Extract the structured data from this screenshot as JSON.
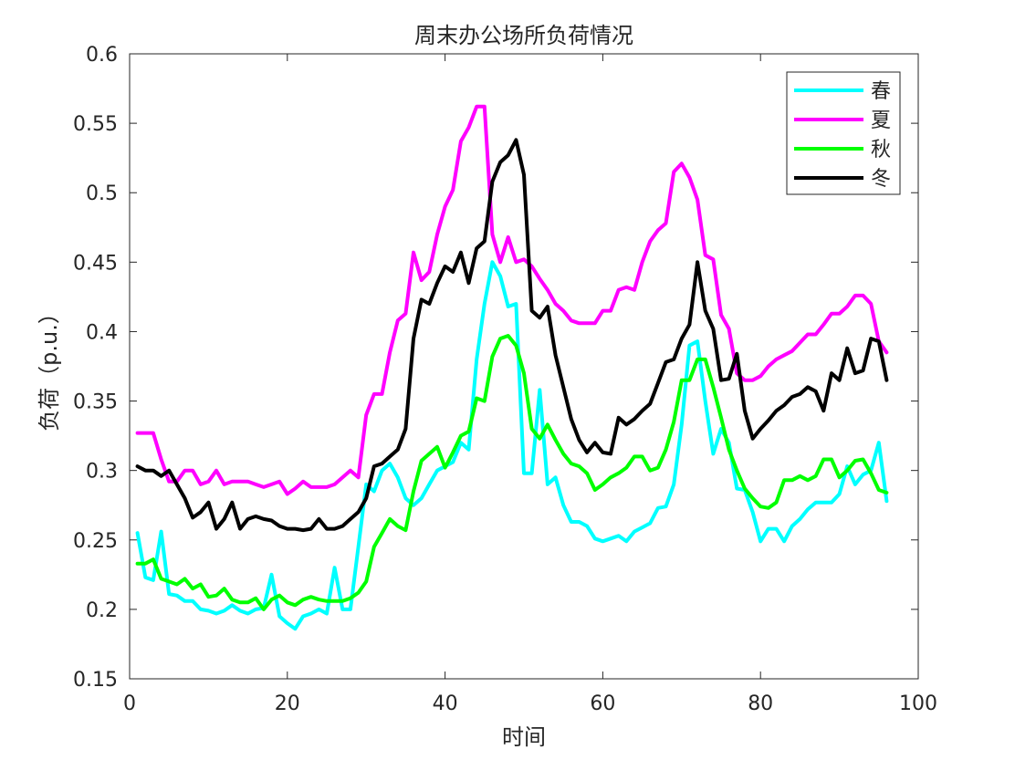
{
  "chart_data": {
    "type": "line",
    "title": "周末办公场所负荷情况",
    "xlabel": "时间",
    "ylabel": "负荷（p.u.）",
    "xlim": [
      0,
      100
    ],
    "ylim": [
      0.15,
      0.6
    ],
    "xticks": [
      0,
      20,
      40,
      60,
      80,
      100
    ],
    "yticks": [
      0.15,
      0.2,
      0.25,
      0.3,
      0.35,
      0.4,
      0.45,
      0.5,
      0.55,
      0.6
    ],
    "ytick_labels": [
      "0.15",
      "0.2",
      "0.25",
      "0.3",
      "0.35",
      "0.4",
      "0.45",
      "0.5",
      "0.55",
      "0.6"
    ],
    "grid": false,
    "legend_position": "top-right",
    "x": [
      1,
      2,
      3,
      4,
      5,
      6,
      7,
      8,
      9,
      10,
      11,
      12,
      13,
      14,
      15,
      16,
      17,
      18,
      19,
      20,
      21,
      22,
      23,
      24,
      25,
      26,
      27,
      28,
      29,
      30,
      31,
      32,
      33,
      34,
      35,
      36,
      37,
      38,
      39,
      40,
      41,
      42,
      43,
      44,
      45,
      46,
      47,
      48,
      49,
      50,
      51,
      52,
      53,
      54,
      55,
      56,
      57,
      58,
      59,
      60,
      61,
      62,
      63,
      64,
      65,
      66,
      67,
      68,
      69,
      70,
      71,
      72,
      73,
      74,
      75,
      76,
      77,
      78,
      79,
      80,
      81,
      82,
      83,
      84,
      85,
      86,
      87,
      88,
      89,
      90,
      91,
      92,
      93,
      94,
      95,
      96
    ],
    "series": [
      {
        "name": "春",
        "color": "#00ffff",
        "values": [
          0.255,
          0.223,
          0.221,
          0.256,
          0.211,
          0.21,
          0.206,
          0.206,
          0.2,
          0.199,
          0.197,
          0.199,
          0.203,
          0.199,
          0.197,
          0.2,
          0.201,
          0.225,
          0.195,
          0.19,
          0.186,
          0.195,
          0.197,
          0.2,
          0.197,
          0.23,
          0.2,
          0.2,
          0.245,
          0.29,
          0.285,
          0.3,
          0.305,
          0.295,
          0.28,
          0.275,
          0.28,
          0.29,
          0.3,
          0.303,
          0.306,
          0.32,
          0.315,
          0.38,
          0.42,
          0.45,
          0.44,
          0.418,
          0.42,
          0.298,
          0.298,
          0.358,
          0.29,
          0.295,
          0.275,
          0.263,
          0.263,
          0.26,
          0.251,
          0.249,
          0.251,
          0.253,
          0.249,
          0.256,
          0.259,
          0.262,
          0.273,
          0.274,
          0.29,
          0.333,
          0.39,
          0.393,
          0.35,
          0.312,
          0.33,
          0.32,
          0.287,
          0.286,
          0.27,
          0.249,
          0.258,
          0.258,
          0.249,
          0.26,
          0.265,
          0.272,
          0.277,
          0.277,
          0.277,
          0.283,
          0.303,
          0.29,
          0.297,
          0.3,
          0.32,
          0.278
        ]
      },
      {
        "name": "夏",
        "color": "#ff00ff",
        "values": [
          0.327,
          0.327,
          0.327,
          0.308,
          0.292,
          0.292,
          0.3,
          0.3,
          0.29,
          0.292,
          0.3,
          0.29,
          0.292,
          0.292,
          0.292,
          0.29,
          0.288,
          0.29,
          0.292,
          0.283,
          0.287,
          0.292,
          0.288,
          0.288,
          0.288,
          0.29,
          0.295,
          0.3,
          0.295,
          0.34,
          0.355,
          0.355,
          0.385,
          0.408,
          0.413,
          0.457,
          0.437,
          0.443,
          0.47,
          0.49,
          0.502,
          0.537,
          0.547,
          0.562,
          0.562,
          0.47,
          0.45,
          0.468,
          0.45,
          0.452,
          0.447,
          0.438,
          0.43,
          0.42,
          0.415,
          0.408,
          0.406,
          0.406,
          0.406,
          0.415,
          0.415,
          0.43,
          0.432,
          0.43,
          0.45,
          0.465,
          0.473,
          0.478,
          0.515,
          0.521,
          0.511,
          0.495,
          0.455,
          0.452,
          0.412,
          0.402,
          0.37,
          0.365,
          0.365,
          0.368,
          0.375,
          0.38,
          0.383,
          0.386,
          0.392,
          0.398,
          0.398,
          0.405,
          0.413,
          0.413,
          0.418,
          0.426,
          0.426,
          0.42,
          0.393,
          0.385
        ]
      },
      {
        "name": "秋",
        "color": "#00ff00",
        "values": [
          0.233,
          0.233,
          0.236,
          0.222,
          0.22,
          0.218,
          0.222,
          0.215,
          0.218,
          0.209,
          0.21,
          0.215,
          0.207,
          0.205,
          0.205,
          0.208,
          0.2,
          0.207,
          0.21,
          0.205,
          0.203,
          0.207,
          0.209,
          0.207,
          0.206,
          0.206,
          0.206,
          0.208,
          0.212,
          0.22,
          0.245,
          0.255,
          0.265,
          0.26,
          0.257,
          0.285,
          0.307,
          0.312,
          0.317,
          0.302,
          0.313,
          0.325,
          0.328,
          0.352,
          0.35,
          0.382,
          0.395,
          0.397,
          0.39,
          0.37,
          0.33,
          0.323,
          0.333,
          0.322,
          0.312,
          0.305,
          0.303,
          0.298,
          0.286,
          0.29,
          0.295,
          0.298,
          0.302,
          0.31,
          0.31,
          0.3,
          0.302,
          0.315,
          0.335,
          0.365,
          0.365,
          0.38,
          0.38,
          0.36,
          0.338,
          0.315,
          0.3,
          0.287,
          0.28,
          0.274,
          0.273,
          0.277,
          0.293,
          0.293,
          0.296,
          0.293,
          0.296,
          0.308,
          0.308,
          0.295,
          0.3,
          0.307,
          0.308,
          0.298,
          0.286,
          0.284
        ]
      },
      {
        "name": "冬",
        "color": "#000000",
        "values": [
          0.303,
          0.3,
          0.3,
          0.296,
          0.3,
          0.29,
          0.28,
          0.266,
          0.27,
          0.277,
          0.258,
          0.265,
          0.277,
          0.258,
          0.265,
          0.267,
          0.265,
          0.264,
          0.26,
          0.258,
          0.258,
          0.257,
          0.258,
          0.265,
          0.258,
          0.258,
          0.26,
          0.265,
          0.27,
          0.28,
          0.303,
          0.305,
          0.31,
          0.315,
          0.33,
          0.395,
          0.423,
          0.42,
          0.435,
          0.447,
          0.443,
          0.457,
          0.435,
          0.46,
          0.465,
          0.508,
          0.522,
          0.527,
          0.538,
          0.513,
          0.415,
          0.41,
          0.418,
          0.383,
          0.36,
          0.337,
          0.322,
          0.313,
          0.32,
          0.313,
          0.312,
          0.338,
          0.333,
          0.337,
          0.343,
          0.348,
          0.363,
          0.378,
          0.38,
          0.395,
          0.405,
          0.45,
          0.415,
          0.402,
          0.365,
          0.366,
          0.384,
          0.343,
          0.323,
          0.33,
          0.336,
          0.343,
          0.347,
          0.353,
          0.355,
          0.36,
          0.357,
          0.343,
          0.37,
          0.365,
          0.388,
          0.37,
          0.372,
          0.395,
          0.393,
          0.365
        ]
      }
    ]
  }
}
